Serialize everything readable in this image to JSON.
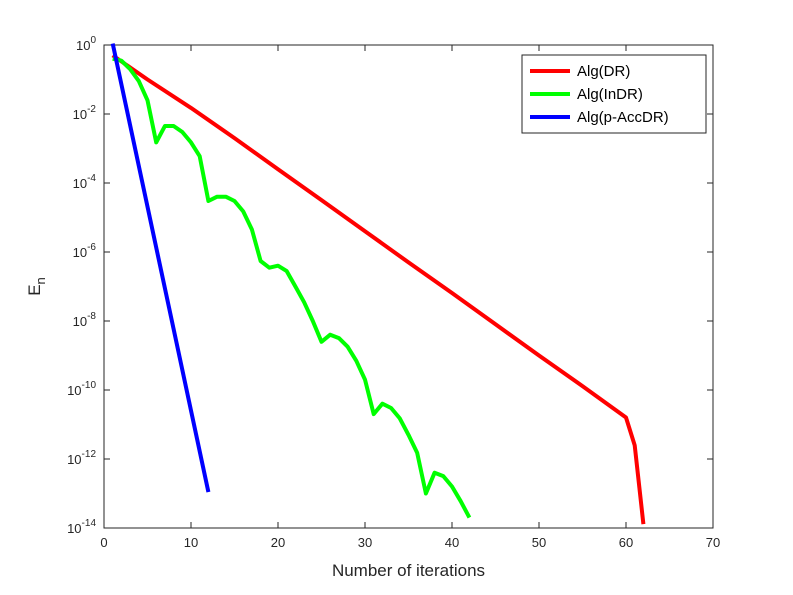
{
  "chart_data": {
    "type": "line",
    "title": "",
    "xlabel": "Number of iterations",
    "ylabel_base": "E",
    "ylabel_sub": "n",
    "xlim": [
      0,
      70
    ],
    "ylim": [
      1e-14,
      1
    ],
    "yscale": "log",
    "grid": false,
    "legend_position": "top-right",
    "x_ticks": [
      0,
      10,
      20,
      30,
      40,
      50,
      60,
      70
    ],
    "y_ticks": [
      {
        "value": 1,
        "base": "10",
        "exp": "0"
      },
      {
        "value": 0.01,
        "base": "10",
        "exp": "-2"
      },
      {
        "value": 0.0001,
        "base": "10",
        "exp": "-4"
      },
      {
        "value": 1e-06,
        "base": "10",
        "exp": "-6"
      },
      {
        "value": 1e-08,
        "base": "10",
        "exp": "-8"
      },
      {
        "value": 1e-10,
        "base": "10",
        "exp": "-10"
      },
      {
        "value": 1e-12,
        "base": "10",
        "exp": "-12"
      },
      {
        "value": 1e-14,
        "base": "10",
        "exp": "-14"
      }
    ],
    "series": [
      {
        "name": "Alg(DR)",
        "color": "#ff0000",
        "x": [
          1,
          5,
          10,
          15,
          20,
          25,
          30,
          35,
          40,
          45,
          50,
          55,
          60,
          61,
          62
        ],
        "y": [
          0.5,
          0.1,
          0.015,
          0.002,
          0.00025,
          3.2e-05,
          4e-06,
          5e-07,
          6.5e-08,
          8e-09,
          1e-09,
          1.3e-10,
          1.6e-11,
          2.5e-12,
          1.3e-14
        ]
      },
      {
        "name": "Alg(InDR)",
        "color": "#00ff00",
        "x": [
          1,
          2,
          3,
          4,
          5,
          6,
          7,
          8,
          9,
          10,
          11,
          12,
          13,
          14,
          15,
          16,
          17,
          18,
          19,
          20,
          21,
          22,
          23,
          24,
          25,
          26,
          27,
          28,
          29,
          30,
          31,
          32,
          33,
          34,
          35,
          36,
          37,
          38,
          39,
          40,
          41,
          42
        ],
        "y": [
          0.4,
          0.35,
          0.2,
          0.09,
          0.025,
          0.0015,
          0.0045,
          0.0045,
          0.003,
          0.0015,
          0.0006,
          3e-05,
          4e-05,
          4e-05,
          3e-05,
          1.5e-05,
          4.5e-06,
          5.5e-07,
          3.5e-07,
          4e-07,
          2.8e-07,
          1e-07,
          3.5e-08,
          1e-08,
          2.5e-09,
          4e-09,
          3.2e-09,
          1.8e-09,
          7e-10,
          2e-10,
          2e-11,
          4e-11,
          3e-11,
          1.5e-11,
          5e-12,
          1.5e-12,
          1e-13,
          4e-13,
          3.2e-13,
          1.6e-13,
          6e-14,
          2e-14
        ]
      },
      {
        "name": "Alg(p-AccDR)",
        "color": "#0000ff",
        "x": [
          1,
          12
        ],
        "y": [
          1.1,
          1.1e-13
        ]
      }
    ]
  }
}
